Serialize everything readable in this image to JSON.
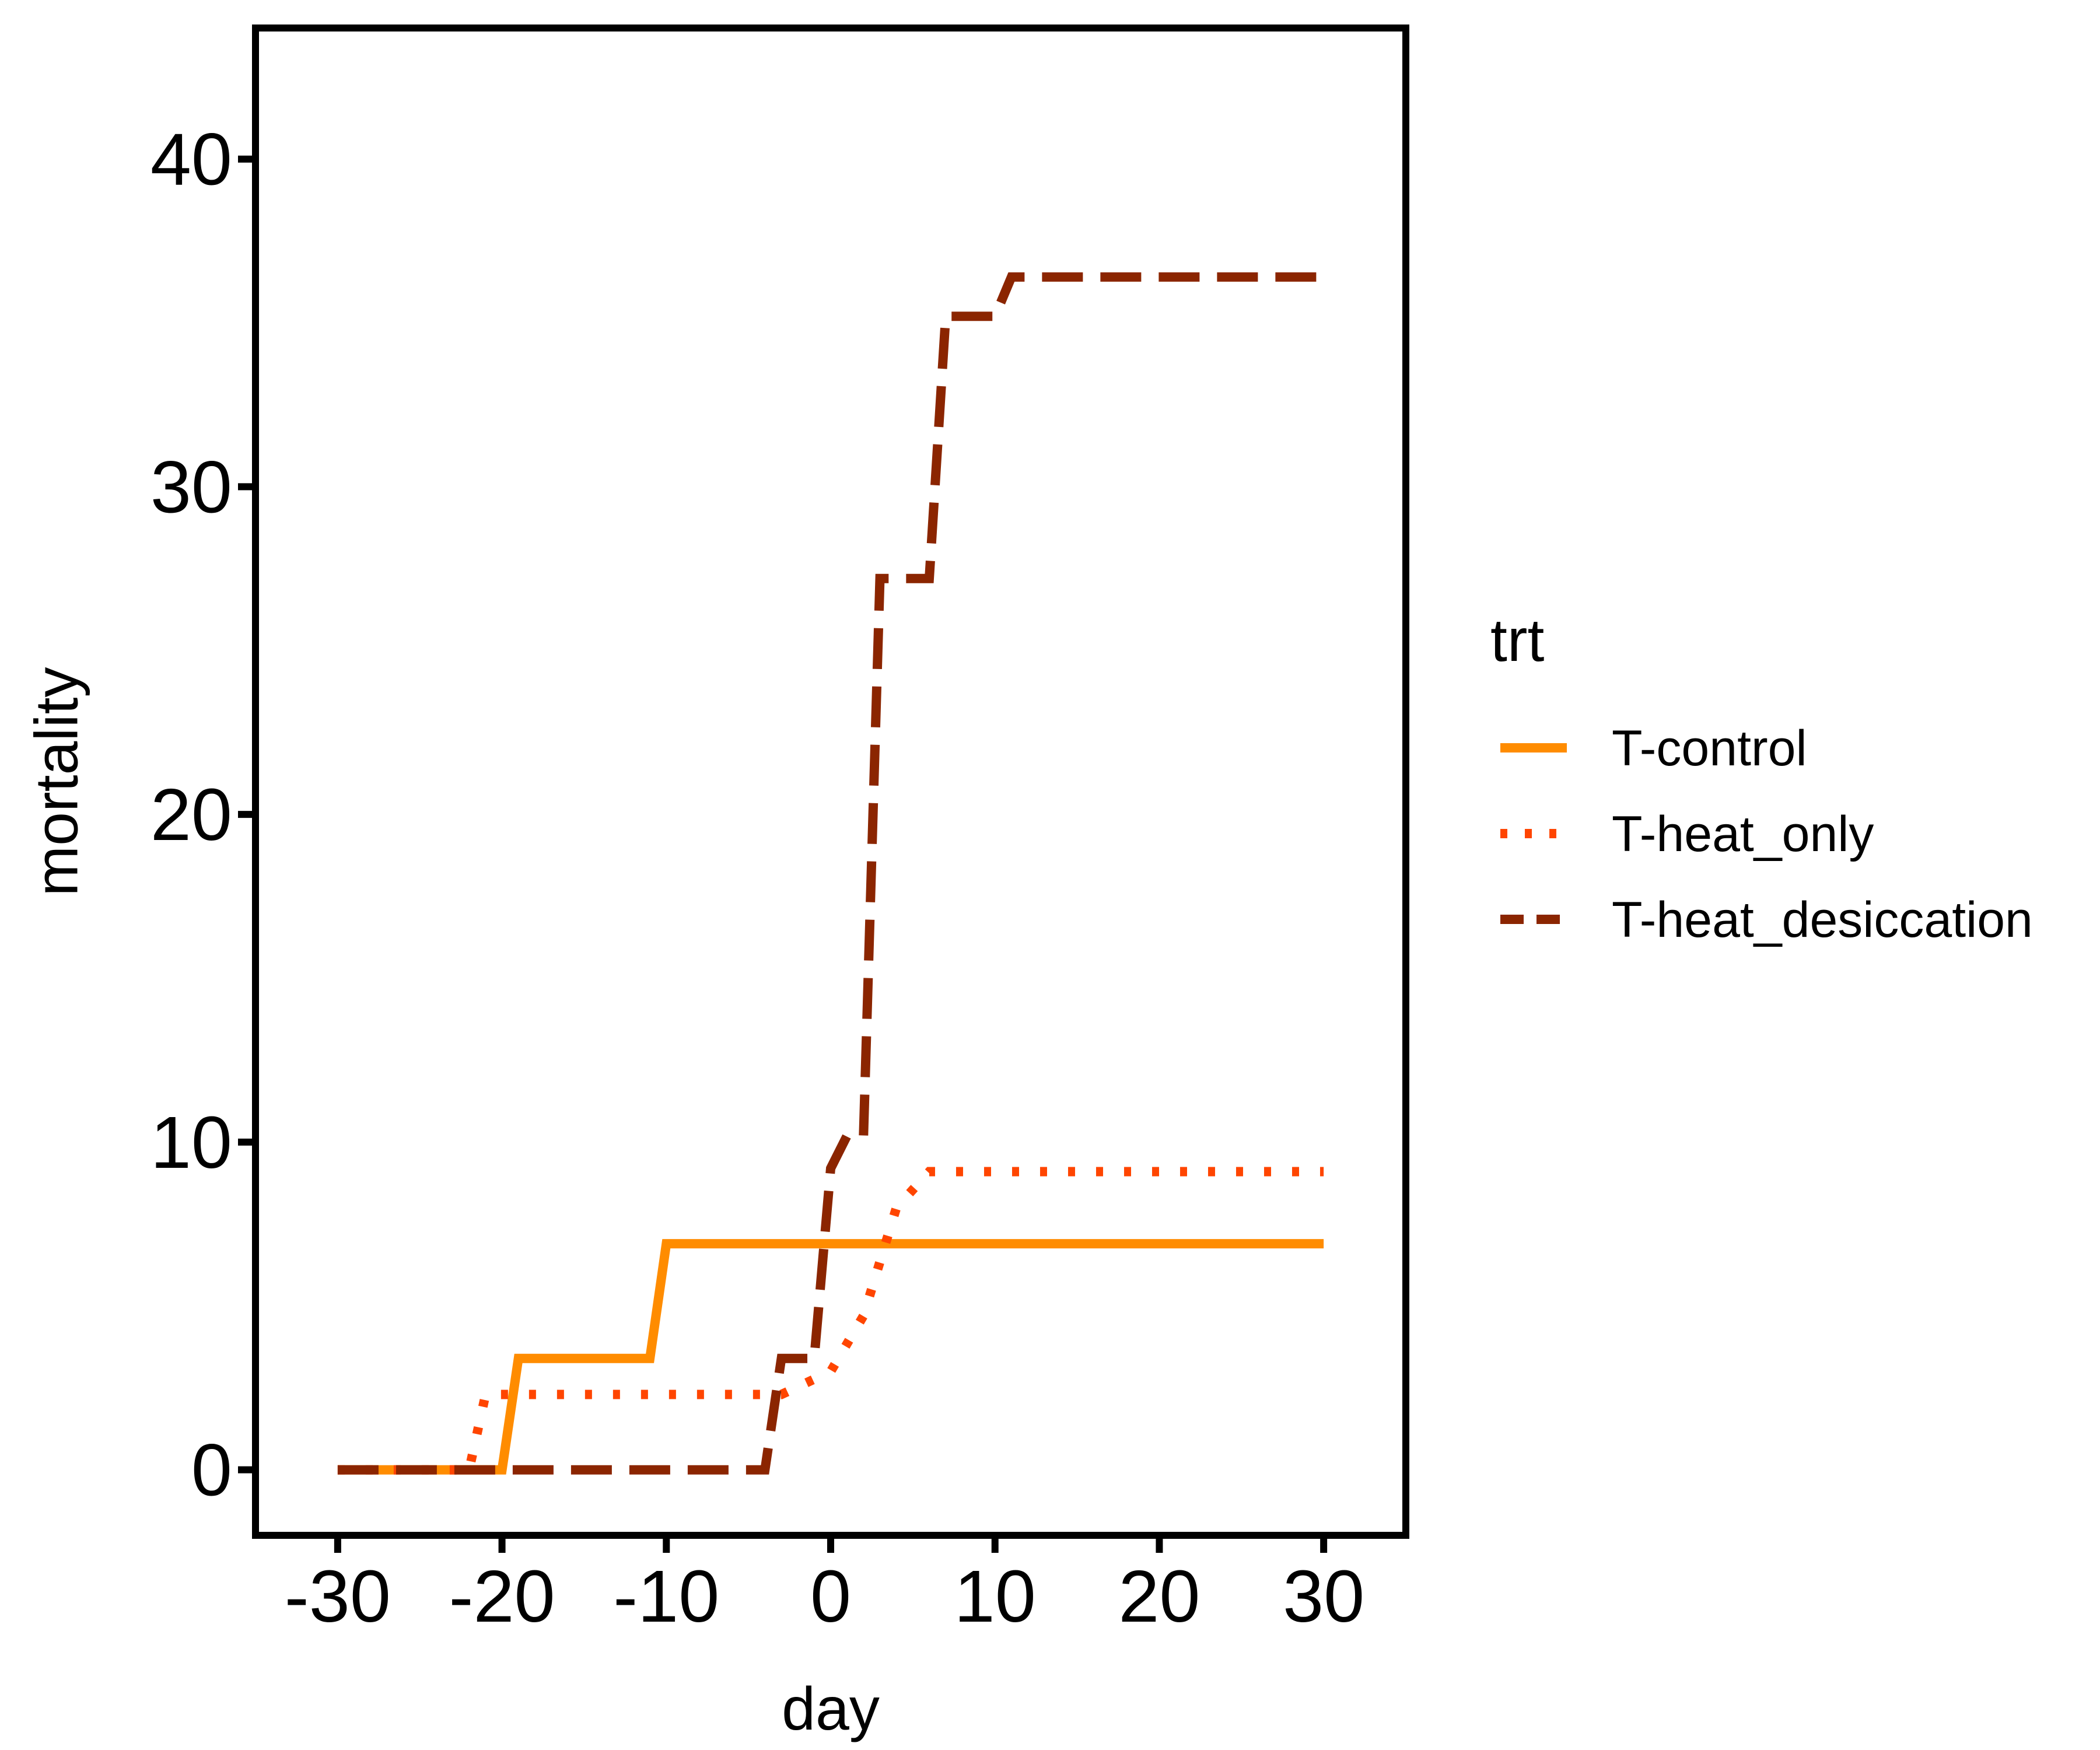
{
  "chart_data": {
    "type": "line",
    "xlabel": "day",
    "ylabel": "mortality",
    "xlim": [
      -35,
      35
    ],
    "ylim": [
      -2,
      44
    ],
    "x_ticks": [
      -30,
      -20,
      -10,
      0,
      10,
      20,
      30
    ],
    "x_tick_labels": [
      "-30",
      "-20",
      "-10",
      "0",
      "10",
      "20",
      "30"
    ],
    "y_ticks": [
      0,
      10,
      20,
      30,
      40
    ],
    "y_tick_labels": [
      "0",
      "10",
      "20",
      "30",
      "40"
    ],
    "grid": false,
    "legend_placement": "right",
    "legend_title": "trt",
    "series": [
      {
        "name": "T-control",
        "color": "#FF8C00",
        "dash": "solid",
        "x": [
          -30,
          -20,
          -19,
          -11,
          -10,
          30
        ],
        "y": [
          0,
          0,
          3.4,
          3.4,
          6.9,
          6.9
        ]
      },
      {
        "name": "T-heat_only",
        "color": "#FF4500",
        "dash": "dotted",
        "x": [
          -30,
          -22,
          -21,
          -3,
          0,
          2,
          4,
          6,
          30
        ],
        "y": [
          0,
          0,
          2.3,
          2.3,
          3,
          4.7,
          8,
          9.1,
          9.1
        ]
      },
      {
        "name": "T-heat_desiccation",
        "color": "#8B2500",
        "dash": "dashed",
        "x": [
          -30,
          -4,
          -3,
          -1,
          0,
          1,
          2,
          3,
          6,
          7,
          10,
          11,
          30
        ],
        "y": [
          0,
          0,
          3.4,
          3.4,
          9.2,
          10.2,
          10.2,
          27.2,
          27.2,
          35.2,
          35.2,
          36.4,
          36.4
        ]
      }
    ]
  }
}
